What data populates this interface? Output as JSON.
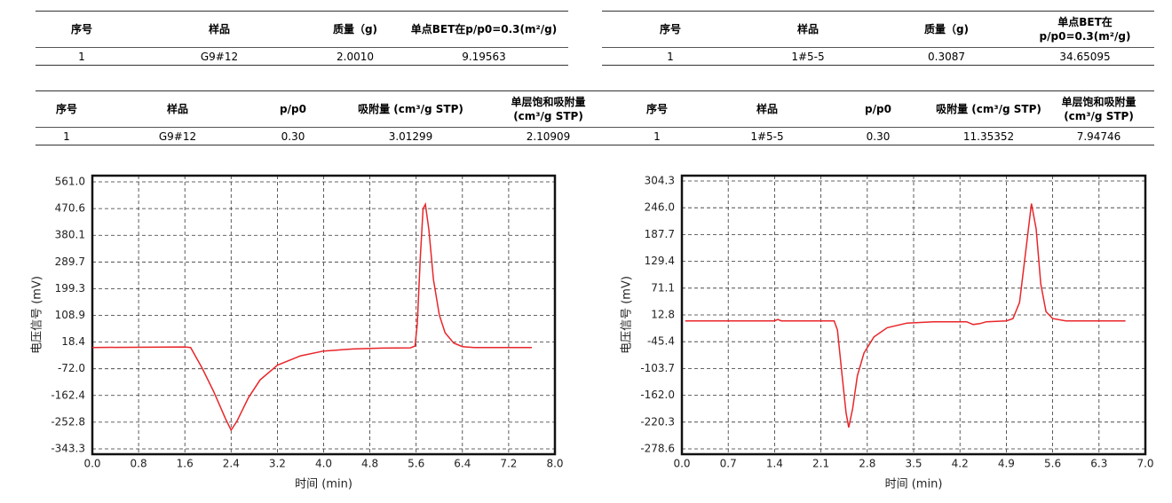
{
  "panels": [
    {
      "table1": {
        "header": [
          "序号",
          "样品",
          "质量（g)",
          "单点BET在p/p0=0.3(m²/g)"
        ],
        "rows": [
          [
            "1",
            "G9#12",
            "2.0010",
            "9.19563"
          ]
        ]
      },
      "table2": {
        "header": [
          "序号",
          "样品",
          "p/p0",
          "吸附量 (cm³/g STP)",
          "单层饱和吸附量(cm³/g STP)"
        ],
        "rows": [
          [
            "1",
            "G9#12",
            "0.30",
            "3.01299",
            "2.10909"
          ]
        ]
      }
    },
    {
      "table1": {
        "header": [
          "序号",
          "样品",
          "质量（g)",
          "单点BET在p/p0=0.3(m²/g)"
        ],
        "rows": [
          [
            "1",
            "1#5-5",
            "0.3087",
            "34.65095"
          ]
        ]
      },
      "table2": {
        "header": [
          "序号",
          "样品",
          "p/p0",
          "吸附量 (cm³/g STP)",
          "单层饱和吸附量(cm³/g STP)"
        ],
        "rows": [
          [
            "1",
            "1#5-5",
            "0.30",
            "11.35352",
            "7.94746"
          ]
        ]
      }
    }
  ],
  "chart_data": [
    {
      "type": "line",
      "x_label": "时间 (min)",
      "y_label": "电压信号 (mV)",
      "grid": true,
      "xlim": [
        0,
        8
      ],
      "xticks": [
        {
          "value": 0,
          "label": "0.0"
        },
        0.8,
        1.6,
        2.4,
        3.2,
        {
          "value": 4,
          "label": "4.0"
        },
        4.8,
        5.6,
        6.4,
        7.2,
        {
          "value": 8,
          "label": "8.0"
        }
      ],
      "ylim": [
        -343.3,
        561
      ],
      "yticks": [
        -343.3,
        -252.8,
        -162.4,
        {
          "value": -72,
          "label": "-72.0"
        },
        18.4,
        108.9,
        199.3,
        289.7,
        380.1,
        470.6,
        {
          "value": 561,
          "label": "561.0"
        }
      ],
      "x": [
        0,
        1.6,
        1.7,
        1.9,
        2.1,
        2.3,
        2.4,
        2.5,
        2.7,
        2.9,
        3.2,
        3.6,
        4.0,
        4.5,
        5.0,
        5.5,
        5.58,
        5.62,
        5.67,
        5.72,
        5.76,
        5.82,
        5.9,
        6.0,
        6.1,
        6.25,
        6.4,
        6.6,
        7.6
      ],
      "series": [
        {
          "color": "#e8262a",
          "values": [
            0,
            2,
            0,
            -70,
            -150,
            -240,
            -280,
            -250,
            -170,
            -110,
            -60,
            -28,
            -12,
            -5,
            -2,
            -1,
            5,
            80,
            300,
            470,
            485,
            400,
            230,
            110,
            50,
            15,
            3,
            0,
            0
          ]
        }
      ]
    },
    {
      "type": "line",
      "x_label": "时间 (min)",
      "y_label": "电压信号 (mV)",
      "grid": true,
      "xlim": [
        0,
        7
      ],
      "xticks": [
        {
          "value": 0,
          "label": "0.0"
        },
        0.7,
        1.4,
        2.1,
        2.8,
        3.5,
        4.2,
        4.9,
        5.6,
        6.3,
        {
          "value": 7,
          "label": "7.0"
        }
      ],
      "ylim": [
        -278.6,
        304.3
      ],
      "yticks": [
        -278.6,
        -220.3,
        {
          "value": -162,
          "label": "-162.0"
        },
        -103.7,
        -45.4,
        12.8,
        71.1,
        129.4,
        187.7,
        {
          "value": 246,
          "label": "246.0"
        },
        304.3
      ],
      "x": [
        0.05,
        1.4,
        1.45,
        1.5,
        2.3,
        2.35,
        2.42,
        2.48,
        2.52,
        2.58,
        2.65,
        2.75,
        2.9,
        3.1,
        3.4,
        3.8,
        4.3,
        4.4,
        4.5,
        4.6,
        4.9,
        5.0,
        5.1,
        5.2,
        5.28,
        5.35,
        5.42,
        5.5,
        5.6,
        5.8,
        6.7
      ],
      "series": [
        {
          "color": "#e8262a",
          "values": [
            0,
            0,
            3,
            0,
            0,
            -20,
            -120,
            -200,
            -232,
            -190,
            -120,
            -70,
            -35,
            -15,
            -5,
            -2,
            -2,
            -8,
            -6,
            -2,
            0,
            5,
            40,
            160,
            255,
            200,
            80,
            20,
            5,
            0,
            0
          ]
        }
      ]
    }
  ]
}
